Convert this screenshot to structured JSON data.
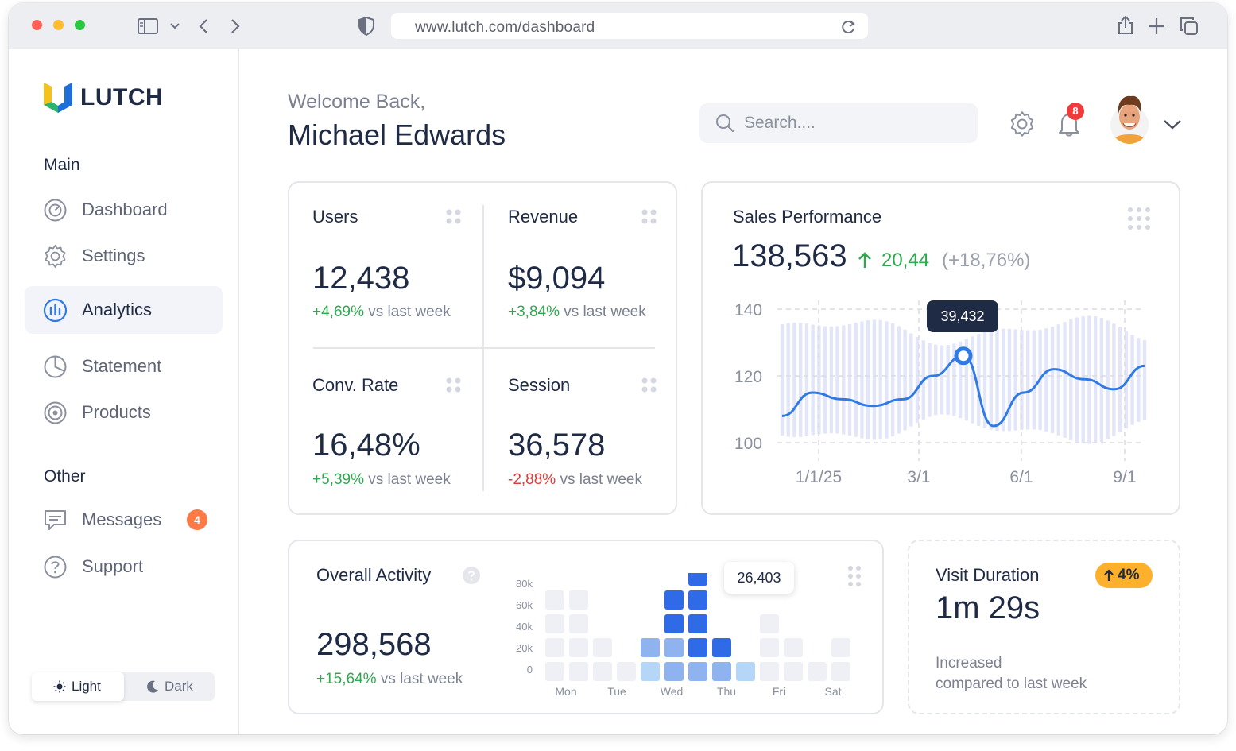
{
  "browser": {
    "url": "www.lutch.com/dashboard"
  },
  "brand": {
    "name": "LUTCH"
  },
  "sidebar": {
    "main_label": "Main",
    "other_label": "Other",
    "items": [
      {
        "label": "Dashboard",
        "icon": "gauge-icon",
        "active": false
      },
      {
        "label": "Settings",
        "icon": "gear-icon",
        "active": false
      },
      {
        "label": "Analytics",
        "icon": "bar-chart-icon",
        "active": true
      },
      {
        "label": "Statement",
        "icon": "pie-chart-icon",
        "active": false
      },
      {
        "label": "Products",
        "icon": "target-icon",
        "active": false
      },
      {
        "label": "Messages",
        "icon": "chat-icon",
        "active": false,
        "badge": "4"
      },
      {
        "label": "Support",
        "icon": "help-circle-icon",
        "active": false
      }
    ],
    "theme": {
      "light_label": "Light",
      "dark_label": "Dark",
      "selected": "Light"
    }
  },
  "header": {
    "welcome": "Welcome Back,",
    "user_name": "Michael Edwards",
    "search_placeholder": "Search....",
    "notification_count": "8"
  },
  "stats": [
    {
      "title": "Users",
      "value": "12,438",
      "delta": "+4,69%",
      "delta_suffix": "vs last week",
      "trend": "up"
    },
    {
      "title": "Revenue",
      "value": "$9,094",
      "delta": "+3,84%",
      "delta_suffix": "vs last week",
      "trend": "up"
    },
    {
      "title": "Conv. Rate",
      "value": "16,48%",
      "delta": "+5,39%",
      "delta_suffix": "vs last week",
      "trend": "up"
    },
    {
      "title": "Session",
      "value": "36,578",
      "delta": "-2,88%",
      "delta_suffix": "vs last week",
      "trend": "down"
    }
  ],
  "sales_performance": {
    "title": "Sales Performance",
    "value": "138,563",
    "change": "20,44",
    "change_pct": "(+18,76%)",
    "tooltip": "39,432",
    "colors": {
      "line": "#2f7ae5",
      "bars": "#e2e6f8",
      "positive": "#2fa84f"
    }
  },
  "overall_activity": {
    "title": "Overall Activity",
    "value": "298,568",
    "delta": "+15,64%",
    "delta_suffix": "vs last week",
    "tooltip": "26,403"
  },
  "visit_duration": {
    "title": "Visit Duration",
    "badge": "4%",
    "value": "1m 29s",
    "note_line1": "Increased",
    "note_line2": "compared to last week"
  },
  "chart_data": [
    {
      "type": "line",
      "title": "Sales Performance",
      "x_ticks": [
        "1/1/25",
        "3/1",
        "6/1",
        "9/1"
      ],
      "y_ticks": [
        100,
        120,
        140
      ],
      "ylim": [
        95,
        145
      ],
      "grid": true,
      "series": [
        {
          "x": [
            "1/1/25",
            "",
            "",
            "3/1",
            "",
            "",
            "",
            "6/1",
            "",
            "",
            "",
            "9/1",
            ""
          ],
          "values": [
            108,
            115,
            113,
            111,
            113,
            120,
            126,
            105,
            115,
            122,
            119,
            116,
            123
          ]
        }
      ],
      "highlight": {
        "value": "39,432",
        "at_value": 126
      }
    },
    {
      "type": "heatmap",
      "title": "Overall Activity",
      "categories": [
        "Mon",
        "Tue",
        "Wed",
        "Thu",
        "Fri",
        "Sat"
      ],
      "y_ticks": [
        "80k",
        "60k",
        "40k",
        "20k",
        "0"
      ],
      "columns": [
        {
          "day": "Mon",
          "levels": [
            1,
            1,
            1,
            1
          ],
          "max_row": 4
        },
        {
          "day": "Mon",
          "levels": [
            1,
            1,
            1,
            1
          ],
          "max_row": 4
        },
        {
          "day": "Mon",
          "levels": [
            1,
            1
          ],
          "max_row": 2
        },
        {
          "day": "Tue",
          "levels": [
            1
          ],
          "max_row": 1
        },
        {
          "day": "Wed",
          "levels": [
            2,
            3
          ],
          "max_row": 2
        },
        {
          "day": "Wed",
          "levels": [
            2,
            4,
            4,
            4
          ],
          "max_row": 4
        },
        {
          "day": "Wed",
          "levels": [
            2,
            4,
            4,
            4,
            4
          ],
          "max_row": 5
        },
        {
          "day": "Thu",
          "levels": [
            2,
            4
          ],
          "max_row": 2
        },
        {
          "day": "Thu",
          "levels": [
            2
          ],
          "max_row": 1
        },
        {
          "day": "Fri",
          "levels": [
            1,
            1,
            1
          ],
          "max_row": 3
        },
        {
          "day": "Fri",
          "levels": [
            1,
            1
          ],
          "max_row": 2
        },
        {
          "day": "Sat",
          "levels": [
            1
          ],
          "max_row": 1
        },
        {
          "day": "Sat",
          "levels": [
            1,
            1
          ],
          "max_row": 2
        }
      ],
      "highlight": {
        "value": "26,403"
      }
    }
  ]
}
